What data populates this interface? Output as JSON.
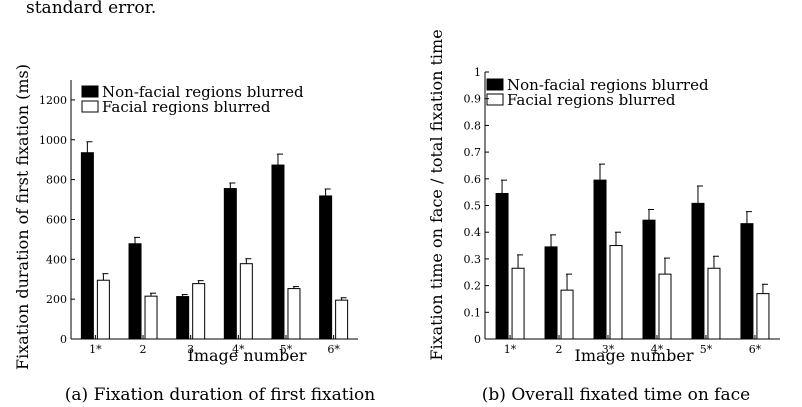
{
  "header_text": "standard error.",
  "chart_data": [
    {
      "type": "bar",
      "caption": "(a) Fixation duration of first fixation",
      "xlabel": "Image number",
      "ylabel": "Fixation duration of first fixation (ms)",
      "categories": [
        "1*",
        "2",
        "3",
        "4*",
        "5*",
        "6*"
      ],
      "ylim": [
        0,
        1300
      ],
      "yticks": [
        0,
        200,
        400,
        600,
        800,
        1000,
        1200
      ],
      "legend_position": "top-left",
      "grid": false,
      "series": [
        {
          "name": "Non-facial regions blurred",
          "color": "#000000",
          "values": [
            935,
            478,
            213,
            755,
            873,
            718
          ],
          "errors": [
            55,
            32,
            10,
            28,
            55,
            35
          ]
        },
        {
          "name": "Facial regions blurred",
          "color": "#ffffff",
          "values": [
            295,
            215,
            278,
            378,
            253,
            195
          ],
          "errors": [
            33,
            15,
            15,
            25,
            10,
            12
          ]
        }
      ]
    },
    {
      "type": "bar",
      "caption": "(b) Overall fixated time on face",
      "xlabel": "Image number",
      "ylabel": "Fixation time on face / total fixation time",
      "categories": [
        "1*",
        "2",
        "3*",
        "4*",
        "5*",
        "6*"
      ],
      "ylim": [
        0,
        1
      ],
      "yticks": [
        0,
        0.1,
        0.2,
        0.3,
        0.4,
        0.5,
        0.6,
        0.7,
        0.8,
        0.9,
        1
      ],
      "legend_position": "top-left",
      "grid": false,
      "series": [
        {
          "name": "Non-facial regions blurred",
          "color": "#000000",
          "values": [
            0.545,
            0.345,
            0.595,
            0.445,
            0.508,
            0.432
          ],
          "errors": [
            0.05,
            0.045,
            0.06,
            0.04,
            0.065,
            0.045
          ]
        },
        {
          "name": "Facial regions blurred",
          "color": "#ffffff",
          "values": [
            0.265,
            0.183,
            0.35,
            0.243,
            0.265,
            0.17
          ],
          "errors": [
            0.05,
            0.06,
            0.05,
            0.06,
            0.045,
            0.035
          ]
        }
      ]
    }
  ]
}
